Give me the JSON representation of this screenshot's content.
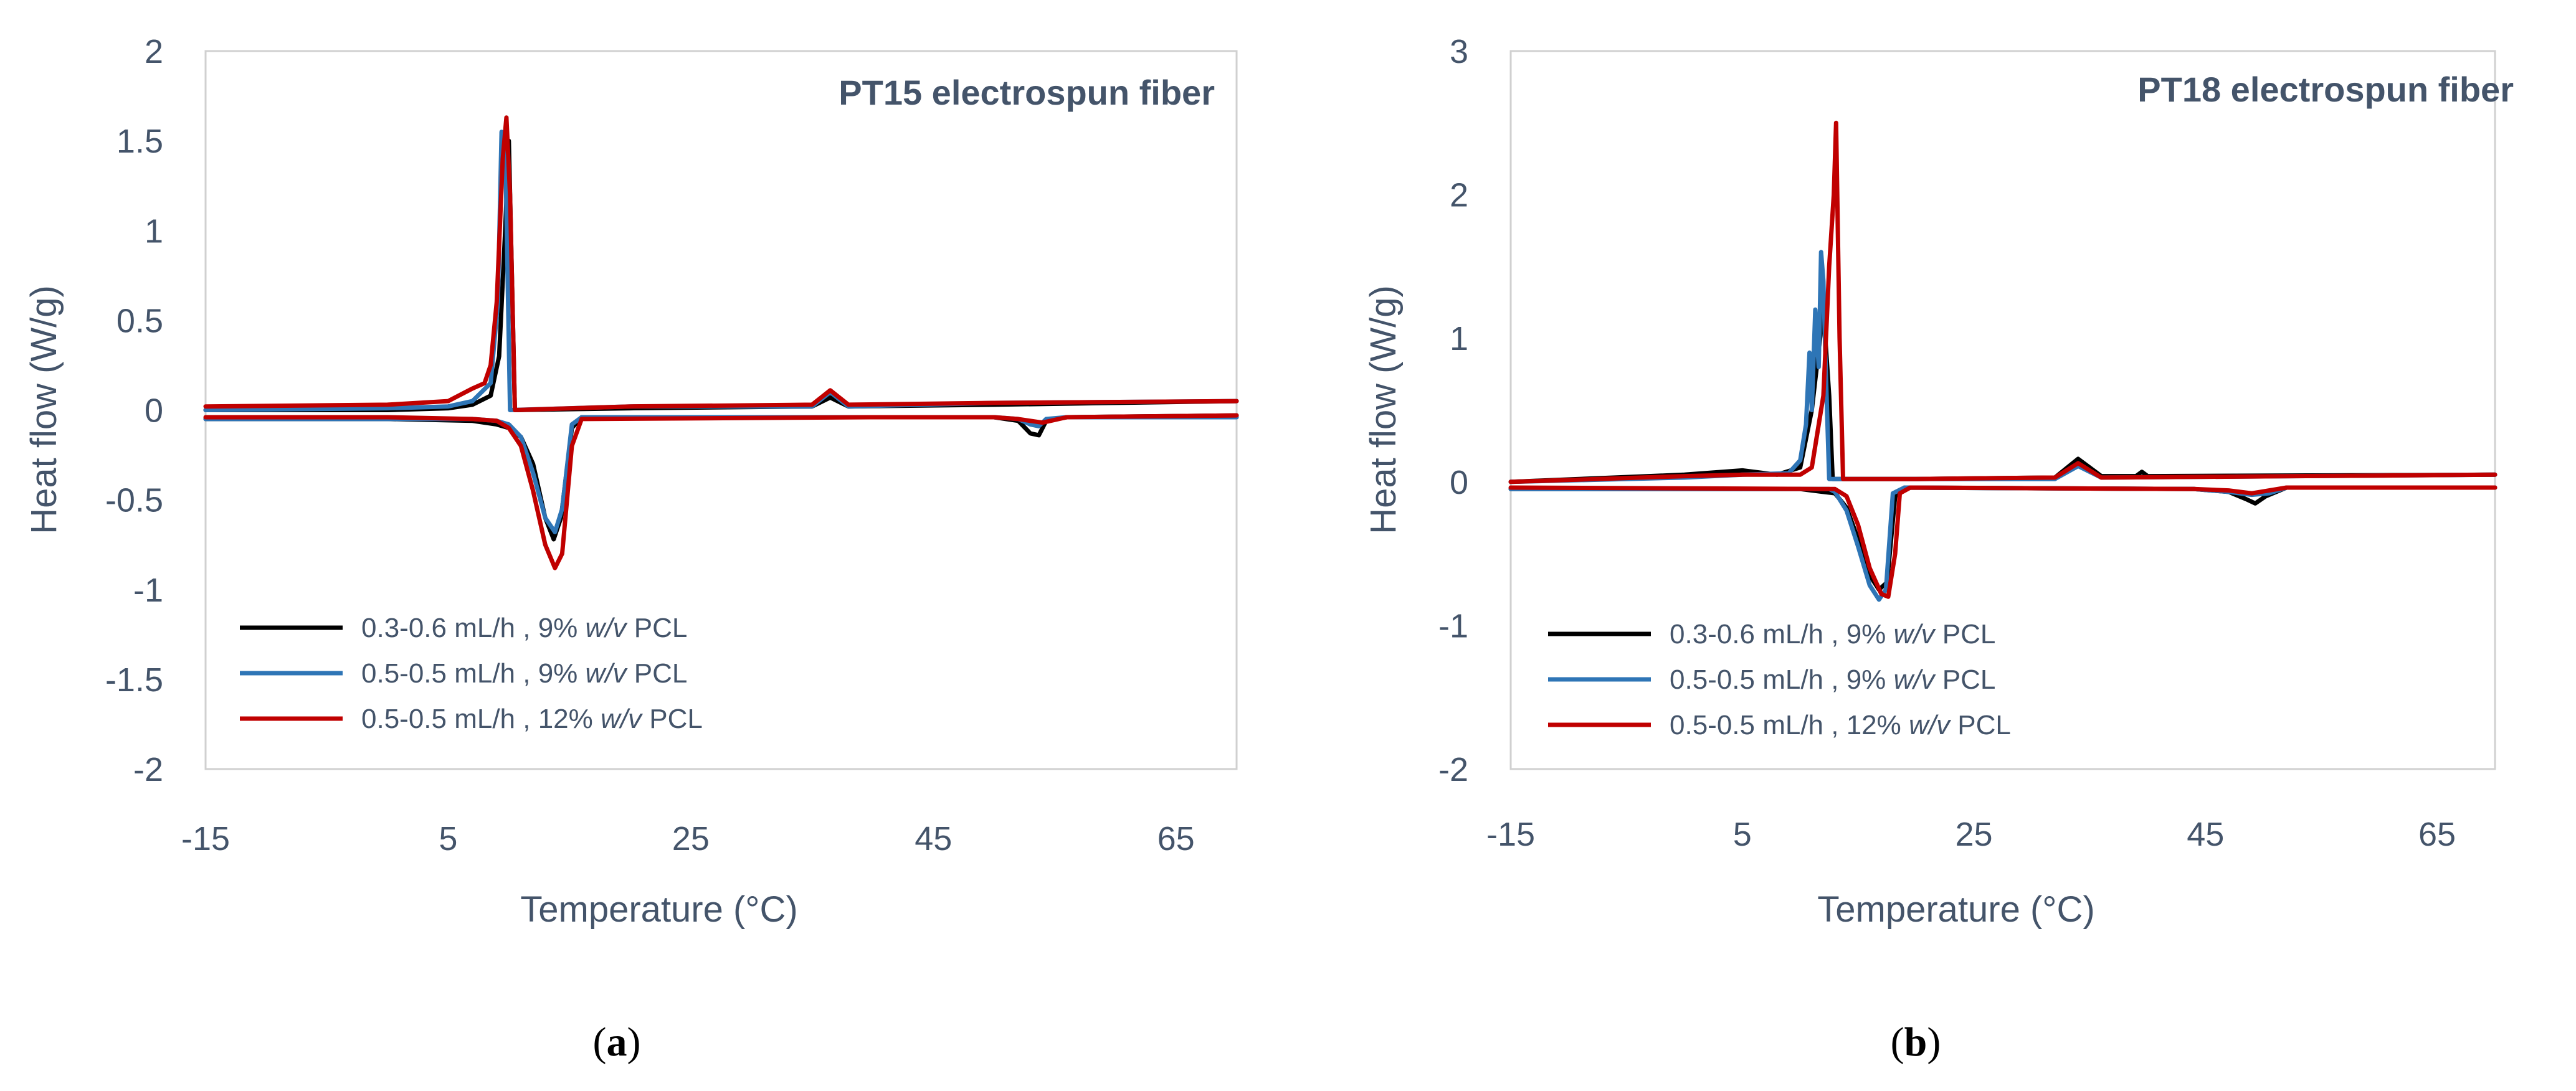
{
  "chart_data": [
    {
      "type": "line",
      "title": "PT15 electrospun fiber",
      "xlabel": "Temperature  (°C)",
      "ylabel": "Heat flow (W/g)",
      "xlim": [
        -15,
        70
      ],
      "ylim": [
        -2,
        2
      ],
      "xticks": [
        "-15",
        "5",
        "25",
        "45",
        "65"
      ],
      "yticks": [
        "2",
        "1.5",
        "1",
        "0.5",
        "0",
        "-0.5",
        "-1",
        "-1.5",
        "-2"
      ],
      "caption_letter": "a",
      "legend_position": "bottom-left",
      "series": [
        {
          "name": "0.3-0.6 mL/h , 9%",
          "italic": "w/v",
          "suffix": "PCL",
          "color": "#000000",
          "upper": [
            [
              -15,
              0.0
            ],
            [
              0,
              0.0
            ],
            [
              5,
              0.01
            ],
            [
              7,
              0.03
            ],
            [
              8.5,
              0.08
            ],
            [
              9.2,
              0.3
            ],
            [
              9.7,
              1.0
            ],
            [
              10.0,
              1.5
            ],
            [
              10.2,
              0.9
            ],
            [
              10.5,
              0.0
            ],
            [
              20,
              0.01
            ],
            [
              35,
              0.02
            ],
            [
              36.5,
              0.07
            ],
            [
              38,
              0.02
            ],
            [
              50,
              0.03
            ],
            [
              70,
              0.05
            ]
          ],
          "lower": [
            [
              -15,
              -0.05
            ],
            [
              0,
              -0.05
            ],
            [
              7,
              -0.06
            ],
            [
              9,
              -0.08
            ],
            [
              10,
              -0.1
            ],
            [
              11,
              -0.15
            ],
            [
              12,
              -0.3
            ],
            [
              13,
              -0.6
            ],
            [
              13.7,
              -0.72
            ],
            [
              14.3,
              -0.6
            ],
            [
              15.2,
              -0.1
            ],
            [
              16,
              -0.04
            ],
            [
              40,
              -0.04
            ],
            [
              50,
              -0.04
            ],
            [
              52,
              -0.06
            ],
            [
              53,
              -0.13
            ],
            [
              53.7,
              -0.14
            ],
            [
              54.3,
              -0.06
            ],
            [
              56,
              -0.04
            ],
            [
              70,
              -0.03
            ]
          ]
        },
        {
          "name": "0.5-0.5 mL/h , 9%",
          "italic": "w/v",
          "suffix": "PCL",
          "color": "#2e75b6",
          "upper": [
            [
              -15,
              0.0
            ],
            [
              0,
              0.01
            ],
            [
              5,
              0.02
            ],
            [
              7,
              0.05
            ],
            [
              8.5,
              0.15
            ],
            [
              9.1,
              0.6
            ],
            [
              9.4,
              1.55
            ],
            [
              9.7,
              1.5
            ],
            [
              10.1,
              0.0
            ],
            [
              20,
              0.02
            ],
            [
              35,
              0.02
            ],
            [
              36.5,
              0.1
            ],
            [
              38,
              0.02
            ],
            [
              50,
              0.04
            ],
            [
              70,
              0.05
            ]
          ],
          "lower": [
            [
              -15,
              -0.05
            ],
            [
              0,
              -0.05
            ],
            [
              7,
              -0.05
            ],
            [
              9,
              -0.06
            ],
            [
              10,
              -0.08
            ],
            [
              11,
              -0.15
            ],
            [
              12,
              -0.35
            ],
            [
              13,
              -0.6
            ],
            [
              13.8,
              -0.68
            ],
            [
              14.4,
              -0.55
            ],
            [
              15.2,
              -0.08
            ],
            [
              16,
              -0.04
            ],
            [
              40,
              -0.04
            ],
            [
              50,
              -0.04
            ],
            [
              52,
              -0.05
            ],
            [
              53,
              -0.08
            ],
            [
              53.7,
              -0.09
            ],
            [
              54.3,
              -0.05
            ],
            [
              56,
              -0.04
            ],
            [
              70,
              -0.04
            ]
          ]
        },
        {
          "name": "0.5-0.5 mL/h , 12%",
          "italic": "w/v",
          "suffix": "PCL",
          "color": "#c00000",
          "upper": [
            [
              -15,
              0.02
            ],
            [
              0,
              0.03
            ],
            [
              5,
              0.05
            ],
            [
              7,
              0.12
            ],
            [
              8.0,
              0.15
            ],
            [
              8.5,
              0.25
            ],
            [
              9.0,
              0.6
            ],
            [
              9.5,
              1.4
            ],
            [
              9.8,
              1.63
            ],
            [
              10.1,
              1.2
            ],
            [
              10.5,
              0.0
            ],
            [
              20,
              0.02
            ],
            [
              35,
              0.03
            ],
            [
              36.5,
              0.11
            ],
            [
              38,
              0.03
            ],
            [
              50,
              0.04
            ],
            [
              70,
              0.05
            ]
          ],
          "lower": [
            [
              -15,
              -0.04
            ],
            [
              0,
              -0.04
            ],
            [
              7,
              -0.05
            ],
            [
              9,
              -0.06
            ],
            [
              10,
              -0.1
            ],
            [
              11,
              -0.2
            ],
            [
              12,
              -0.45
            ],
            [
              13,
              -0.75
            ],
            [
              13.8,
              -0.88
            ],
            [
              14.4,
              -0.8
            ],
            [
              15.2,
              -0.2
            ],
            [
              16,
              -0.05
            ],
            [
              40,
              -0.04
            ],
            [
              50,
              -0.04
            ],
            [
              52,
              -0.05
            ],
            [
              53,
              -0.06
            ],
            [
              54,
              -0.07
            ],
            [
              56,
              -0.04
            ],
            [
              70,
              -0.03
            ]
          ]
        }
      ]
    },
    {
      "type": "line",
      "title": "PT18 electrospun fiber",
      "xlabel": "Temperature  (°C)",
      "ylabel": "Heat flow (W/g)",
      "xlim": [
        -15,
        70
      ],
      "ylim": [
        -2,
        3
      ],
      "xticks": [
        "-15",
        "5",
        "25",
        "45",
        "65"
      ],
      "yticks": [
        "3",
        "2",
        "1",
        "0",
        "-1",
        "-2"
      ],
      "caption_letter": "b",
      "legend_position": "bottom-left",
      "series": [
        {
          "name": "0.3-0.6 mL/h , 9%",
          "italic": "w/v",
          "suffix": "PCL",
          "color": "#000000",
          "upper": [
            [
              -15,
              0.0
            ],
            [
              0,
              0.05
            ],
            [
              5,
              0.08
            ],
            [
              8,
              0.05
            ],
            [
              10,
              0.1
            ],
            [
              11,
              0.5
            ],
            [
              12,
              1.2
            ],
            [
              12.5,
              0.6
            ],
            [
              12.8,
              0.02
            ],
            [
              20,
              0.02
            ],
            [
              32,
              0.03
            ],
            [
              34,
              0.16
            ],
            [
              36,
              0.04
            ],
            [
              39,
              0.04
            ],
            [
              39.5,
              0.07
            ],
            [
              40,
              0.04
            ],
            [
              70,
              0.05
            ]
          ],
          "lower": [
            [
              -15,
              -0.05
            ],
            [
              10,
              -0.05
            ],
            [
              13,
              -0.08
            ],
            [
              14,
              -0.18
            ],
            [
              15,
              -0.4
            ],
            [
              16,
              -0.65
            ],
            [
              16.8,
              -0.75
            ],
            [
              17.5,
              -0.7
            ],
            [
              18.2,
              -0.1
            ],
            [
              19,
              -0.04
            ],
            [
              44,
              -0.05
            ],
            [
              47,
              -0.07
            ],
            [
              48.5,
              -0.12
            ],
            [
              49.3,
              -0.15
            ],
            [
              50.2,
              -0.1
            ],
            [
              52,
              -0.04
            ],
            [
              70,
              -0.04
            ]
          ]
        },
        {
          "name": "0.5-0.5 mL/h , 9%",
          "italic": "w/v",
          "suffix": "PCL",
          "color": "#2e75b6",
          "upper": [
            [
              -15,
              0.0
            ],
            [
              0,
              0.03
            ],
            [
              5,
              0.05
            ],
            [
              9,
              0.06
            ],
            [
              10,
              0.15
            ],
            [
              10.5,
              0.4
            ],
            [
              10.8,
              0.9
            ],
            [
              11.0,
              0.5
            ],
            [
              11.3,
              1.2
            ],
            [
              11.6,
              0.8
            ],
            [
              11.8,
              1.6
            ],
            [
              12.0,
              1.4
            ],
            [
              12.2,
              0.8
            ],
            [
              12.5,
              0.02
            ],
            [
              20,
              0.02
            ],
            [
              32,
              0.02
            ],
            [
              34,
              0.11
            ],
            [
              36,
              0.03
            ],
            [
              70,
              0.05
            ]
          ],
          "lower": [
            [
              -15,
              -0.05
            ],
            [
              12.5,
              -0.05
            ],
            [
              13,
              -0.07
            ],
            [
              14,
              -0.2
            ],
            [
              15,
              -0.45
            ],
            [
              16,
              -0.72
            ],
            [
              16.8,
              -0.82
            ],
            [
              17.4,
              -0.75
            ],
            [
              18.0,
              -0.08
            ],
            [
              19,
              -0.04
            ],
            [
              44,
              -0.05
            ],
            [
              47,
              -0.07
            ],
            [
              49,
              -0.09
            ],
            [
              50.5,
              -0.08
            ],
            [
              52,
              -0.04
            ],
            [
              70,
              -0.04
            ]
          ]
        },
        {
          "name": "0.5-0.5 mL/h , 12%",
          "italic": "w/v",
          "suffix": "PCL",
          "color": "#c00000",
          "upper": [
            [
              -15,
              0.0
            ],
            [
              0,
              0.04
            ],
            [
              5,
              0.05
            ],
            [
              10,
              0.05
            ],
            [
              11,
              0.1
            ],
            [
              12,
              0.6
            ],
            [
              12.5,
              1.5
            ],
            [
              12.9,
              2.0
            ],
            [
              13.1,
              2.5
            ],
            [
              13.4,
              1.0
            ],
            [
              13.7,
              0.02
            ],
            [
              20,
              0.02
            ],
            [
              32,
              0.03
            ],
            [
              34,
              0.13
            ],
            [
              36,
              0.03
            ],
            [
              70,
              0.05
            ]
          ],
          "lower": [
            [
              -15,
              -0.04
            ],
            [
              13,
              -0.05
            ],
            [
              14,
              -0.1
            ],
            [
              15,
              -0.3
            ],
            [
              16,
              -0.6
            ],
            [
              17,
              -0.78
            ],
            [
              17.6,
              -0.8
            ],
            [
              18.2,
              -0.5
            ],
            [
              18.6,
              -0.08
            ],
            [
              19.5,
              -0.04
            ],
            [
              44,
              -0.05
            ],
            [
              47,
              -0.06
            ],
            [
              49,
              -0.08
            ],
            [
              50.5,
              -0.06
            ],
            [
              52,
              -0.04
            ],
            [
              70,
              -0.04
            ]
          ]
        }
      ]
    }
  ]
}
